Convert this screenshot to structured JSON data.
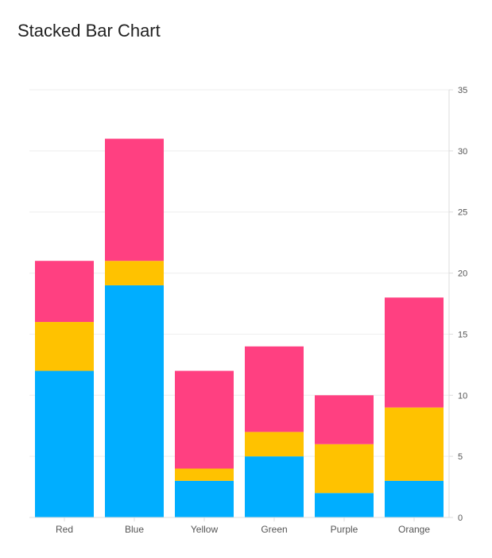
{
  "chart_data": {
    "type": "bar",
    "stacked": true,
    "title": "Stacked Bar Chart",
    "xlabel": "",
    "ylabel": "",
    "categories": [
      "Red",
      "Blue",
      "Yellow",
      "Green",
      "Purple",
      "Orange"
    ],
    "series": [
      {
        "values": [
          12,
          19,
          3,
          5,
          2,
          3
        ],
        "color": "#00AEFF"
      },
      {
        "values": [
          4,
          2,
          1,
          2,
          4,
          6
        ],
        "color": "#FFC200"
      },
      {
        "values": [
          5,
          10,
          8,
          7,
          4,
          9
        ],
        "color": "#FF4081"
      }
    ],
    "ylim": [
      0,
      35
    ],
    "yticks": [
      0,
      5,
      10,
      15,
      20,
      25,
      30,
      35
    ],
    "y_axis_position": "right",
    "grid": true,
    "legend": "none"
  }
}
